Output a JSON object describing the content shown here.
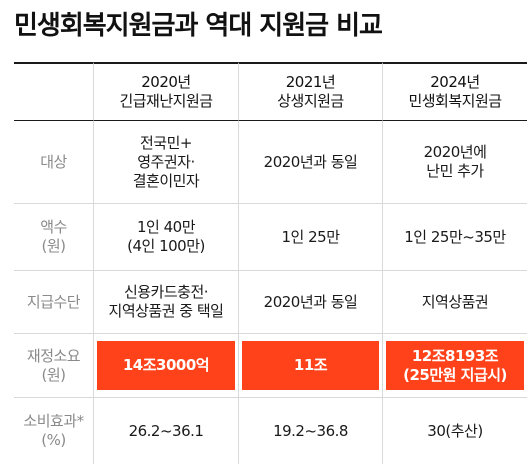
{
  "title": "민생회복지원금과 역대 지원금 비교",
  "columns": [
    "2020년\n긴급재난지원금",
    "2021년\n상생지원금",
    "2024년\n민생회복지원금"
  ],
  "rows": [
    {
      "label": "대상",
      "values": [
        "전국민+\n영주권자·\n결혼이민자",
        "2020년과 동일",
        "2020년에\n난민 추가"
      ]
    },
    {
      "label": "액수\n(원)",
      "values": [
        "1인 40만\n(4인 100만)",
        "1인 25만",
        "1인 25만~35만"
      ]
    },
    {
      "label": "지급수단",
      "values": [
        "신용카드충전·\n지역상품권 중 택일",
        "2020년과 동일",
        "지역상품권"
      ]
    },
    {
      "label": "재정소요\n(원)",
      "values": [
        "14조3000억",
        "11조",
        "12조8193조\n(25만원 지급시)"
      ],
      "highlight": true
    },
    {
      "label": "소비효과*\n(%)",
      "values": [
        "26.2~36.1",
        "19.2~36.8",
        "30(추산)"
      ]
    }
  ],
  "colors": {
    "highlight": "#ff4219",
    "label": "#8a8a8a",
    "rule": "#1a1a1a"
  }
}
